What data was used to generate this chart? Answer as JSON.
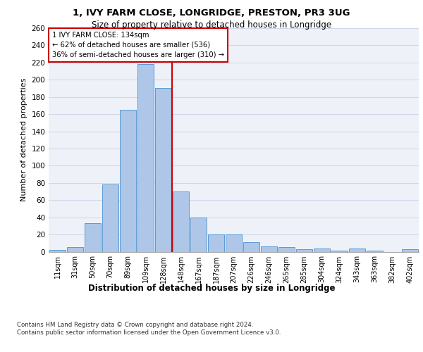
{
  "title1": "1, IVY FARM CLOSE, LONGRIDGE, PRESTON, PR3 3UG",
  "title2": "Size of property relative to detached houses in Longridge",
  "xlabel": "Distribution of detached houses by size in Longridge",
  "ylabel": "Number of detached properties",
  "bar_labels": [
    "11sqm",
    "31sqm",
    "50sqm",
    "70sqm",
    "89sqm",
    "109sqm",
    "128sqm",
    "148sqm",
    "167sqm",
    "187sqm",
    "207sqm",
    "226sqm",
    "246sqm",
    "265sqm",
    "285sqm",
    "304sqm",
    "324sqm",
    "343sqm",
    "363sqm",
    "382sqm",
    "402sqm"
  ],
  "bar_values": [
    2,
    5,
    33,
    78,
    165,
    218,
    190,
    70,
    40,
    20,
    20,
    11,
    6,
    5,
    3,
    4,
    1,
    4,
    1,
    0,
    3
  ],
  "bar_color": "#aec6e8",
  "bar_edge_color": "#5b9bd5",
  "grid_color": "#d0d8e8",
  "background_color": "#eef2f8",
  "property_line_x": 6.5,
  "annotation_text": "1 IVY FARM CLOSE: 134sqm\n← 62% of detached houses are smaller (536)\n36% of semi-detached houses are larger (310) →",
  "annotation_box_color": "#ffffff",
  "annotation_edge_color": "#cc0000",
  "vline_color": "#cc0000",
  "footnote": "Contains HM Land Registry data © Crown copyright and database right 2024.\nContains public sector information licensed under the Open Government Licence v3.0.",
  "ylim": [
    0,
    260
  ],
  "yticks": [
    0,
    20,
    40,
    60,
    80,
    100,
    120,
    140,
    160,
    180,
    200,
    220,
    240,
    260
  ]
}
